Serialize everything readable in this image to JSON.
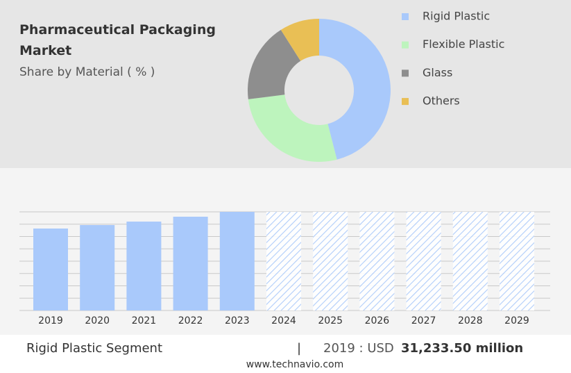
{
  "chart_data": [
    {
      "type": "pie",
      "title": "Pharmaceutical Packaging Market",
      "subtitle": "Share by Material ( % )",
      "donut": true,
      "legend": "right",
      "categories": [
        "Rigid Plastic",
        "Flexible Plastic",
        "Glass",
        "Others"
      ],
      "values": [
        46,
        27,
        18,
        9
      ],
      "colors": [
        "#a9c9fb",
        "#bdf4bd",
        "#8e8e8e",
        "#e9bf55"
      ]
    },
    {
      "type": "bar",
      "categories": [
        "2019",
        "2020",
        "2021",
        "2022",
        "2023",
        "2024",
        "2025",
        "2026",
        "2027",
        "2028",
        "2029"
      ],
      "values": [
        31233.5,
        32560,
        33880,
        35740,
        37590,
        null,
        null,
        null,
        null,
        null,
        null
      ],
      "color": "#a9c9fb",
      "forecast_hatched": true,
      "grid": true
    }
  ],
  "footer": {
    "segment": "Rigid Plastic Segment",
    "separator": "|",
    "prefix": "2019 : USD",
    "value_label": "31,233.50 million",
    "source": "www.technavio.com"
  }
}
